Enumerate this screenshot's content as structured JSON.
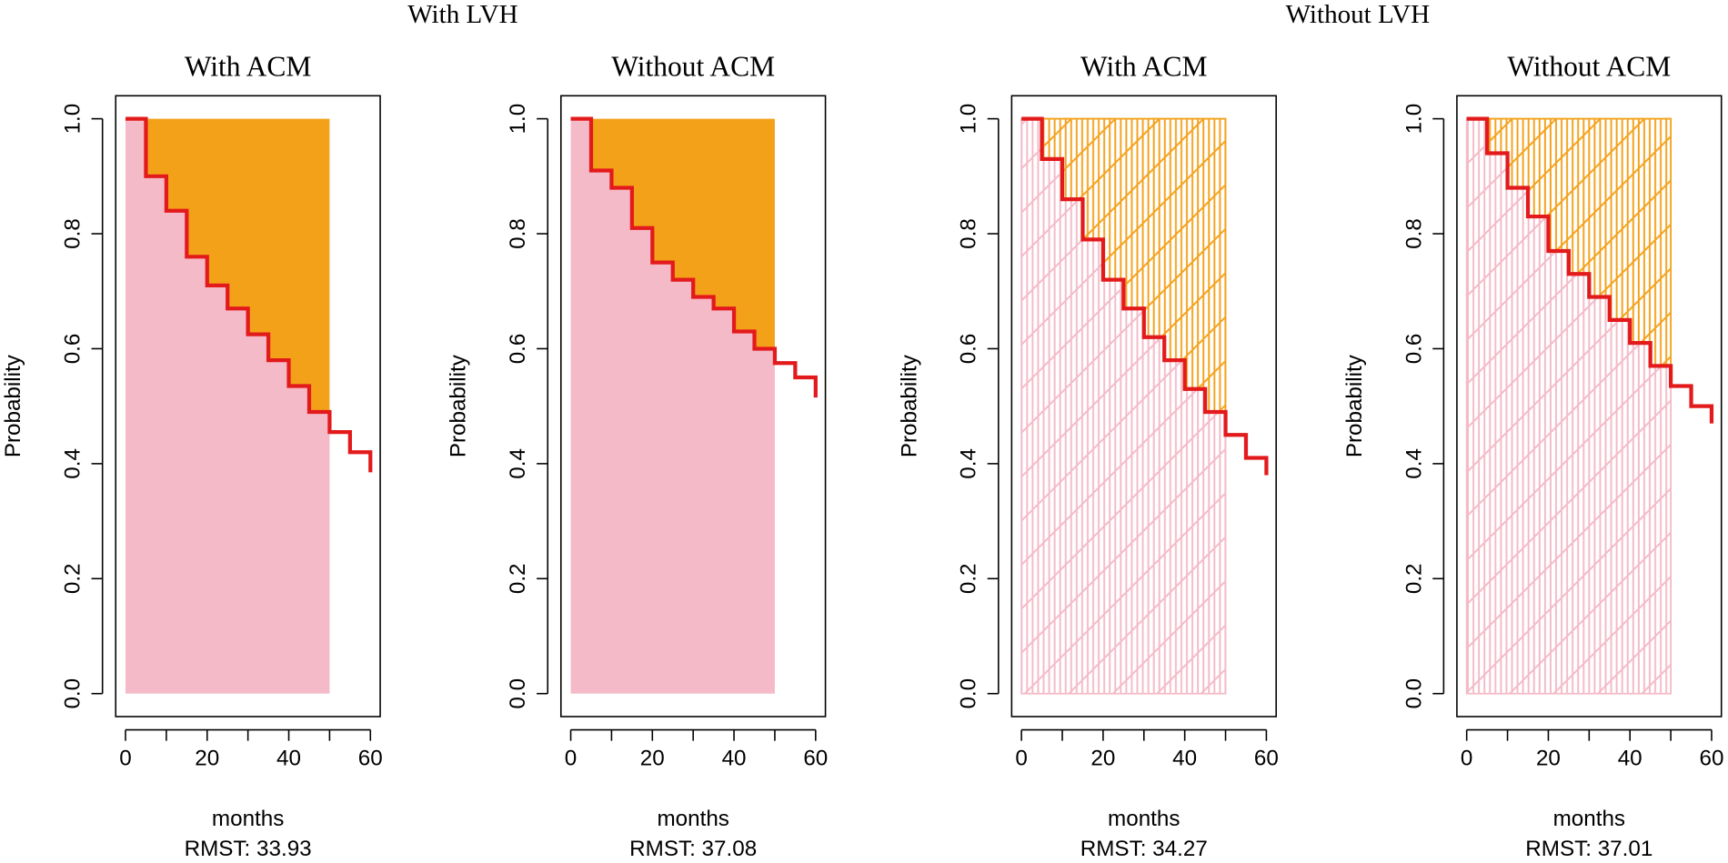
{
  "group_titles": [
    "With LVH",
    "Without LVH"
  ],
  "chart_data": [
    {
      "type": "line",
      "title": "With ACM",
      "x_label": "months",
      "y_label": "Probability",
      "caption": "RMST: 33.93",
      "x": [
        0,
        5,
        10,
        15,
        20,
        25,
        30,
        35,
        40,
        45,
        50,
        55,
        60
      ],
      "values": [
        1.0,
        0.9,
        0.84,
        0.76,
        0.71,
        0.67,
        0.625,
        0.58,
        0.535,
        0.49,
        0.455,
        0.42,
        0.385
      ],
      "color": "#e31a1c",
      "shade_until": 50,
      "fill_below": "#f4bac8",
      "fill_above": "#f4a11a",
      "fill_style": "solid",
      "xlim": [
        -2.4,
        62.4
      ],
      "ylim": [
        -0.04,
        1.04
      ],
      "xticks": [
        0,
        {
          "value": 10,
          "label": null
        },
        20,
        {
          "value": 30,
          "label": null
        },
        40,
        {
          "value": 50,
          "label": null
        },
        60
      ],
      "yticks": [
        {
          "value": 0,
          "label": "0.0"
        },
        0.2,
        0.4,
        0.6,
        0.8,
        {
          "value": 1,
          "label": "1.0"
        }
      ]
    },
    {
      "type": "line",
      "title": "Without ACM",
      "x_label": "months",
      "y_label": "Probability",
      "caption": "RMST: 37.08",
      "x": [
        0,
        5,
        10,
        15,
        20,
        25,
        30,
        35,
        40,
        45,
        50,
        55,
        60
      ],
      "values": [
        1.0,
        0.91,
        0.88,
        0.81,
        0.75,
        0.72,
        0.69,
        0.67,
        0.63,
        0.6,
        0.575,
        0.55,
        0.515
      ],
      "color": "#e31a1c",
      "shade_until": 50,
      "fill_below": "#f4bac8",
      "fill_above": "#f4a11a",
      "fill_style": "solid",
      "xlim": [
        -2.4,
        62.4
      ],
      "ylim": [
        -0.04,
        1.04
      ],
      "xticks": [
        0,
        {
          "value": 10,
          "label": null
        },
        20,
        {
          "value": 30,
          "label": null
        },
        40,
        {
          "value": 50,
          "label": null
        },
        60
      ],
      "yticks": [
        {
          "value": 0,
          "label": "0.0"
        },
        0.2,
        0.4,
        0.6,
        0.8,
        {
          "value": 1,
          "label": "1.0"
        }
      ]
    },
    {
      "type": "line",
      "title": "With ACM",
      "x_label": "months",
      "y_label": "Probability",
      "caption": "RMST: 34.27",
      "x": [
        0,
        5,
        10,
        15,
        20,
        25,
        30,
        35,
        40,
        45,
        50,
        55,
        60
      ],
      "values": [
        1.0,
        0.93,
        0.86,
        0.79,
        0.72,
        0.67,
        0.62,
        0.58,
        0.53,
        0.49,
        0.45,
        0.41,
        0.38
      ],
      "color": "#e31a1c",
      "shade_until": 50,
      "fill_below": "#f4bac8",
      "fill_above": "#f4a11a",
      "fill_style": "hatched",
      "xlim": [
        -2.4,
        62.4
      ],
      "ylim": [
        -0.04,
        1.04
      ],
      "xticks": [
        0,
        {
          "value": 10,
          "label": null
        },
        20,
        {
          "value": 30,
          "label": null
        },
        40,
        {
          "value": 50,
          "label": null
        },
        60
      ],
      "yticks": [
        {
          "value": 0,
          "label": "0.0"
        },
        0.2,
        0.4,
        0.6,
        0.8,
        {
          "value": 1,
          "label": "1.0"
        }
      ]
    },
    {
      "type": "line",
      "title": "Without ACM",
      "x_label": "months",
      "y_label": "Probability",
      "caption": "RMST: 37.01",
      "x": [
        0,
        5,
        10,
        15,
        20,
        25,
        30,
        35,
        40,
        45,
        50,
        55,
        60
      ],
      "values": [
        1.0,
        0.94,
        0.88,
        0.83,
        0.77,
        0.73,
        0.69,
        0.65,
        0.61,
        0.57,
        0.535,
        0.5,
        0.47
      ],
      "color": "#e31a1c",
      "shade_until": 50,
      "fill_below": "#f4bac8",
      "fill_above": "#f4a11a",
      "fill_style": "hatched",
      "xlim": [
        -2.4,
        62.4
      ],
      "ylim": [
        -0.04,
        1.04
      ],
      "xticks": [
        0,
        {
          "value": 10,
          "label": null
        },
        20,
        {
          "value": 30,
          "label": null
        },
        40,
        {
          "value": 50,
          "label": null
        },
        60
      ],
      "yticks": [
        {
          "value": 0,
          "label": "0.0"
        },
        0.2,
        0.4,
        0.6,
        0.8,
        {
          "value": 1,
          "label": "1.0"
        }
      ]
    }
  ]
}
